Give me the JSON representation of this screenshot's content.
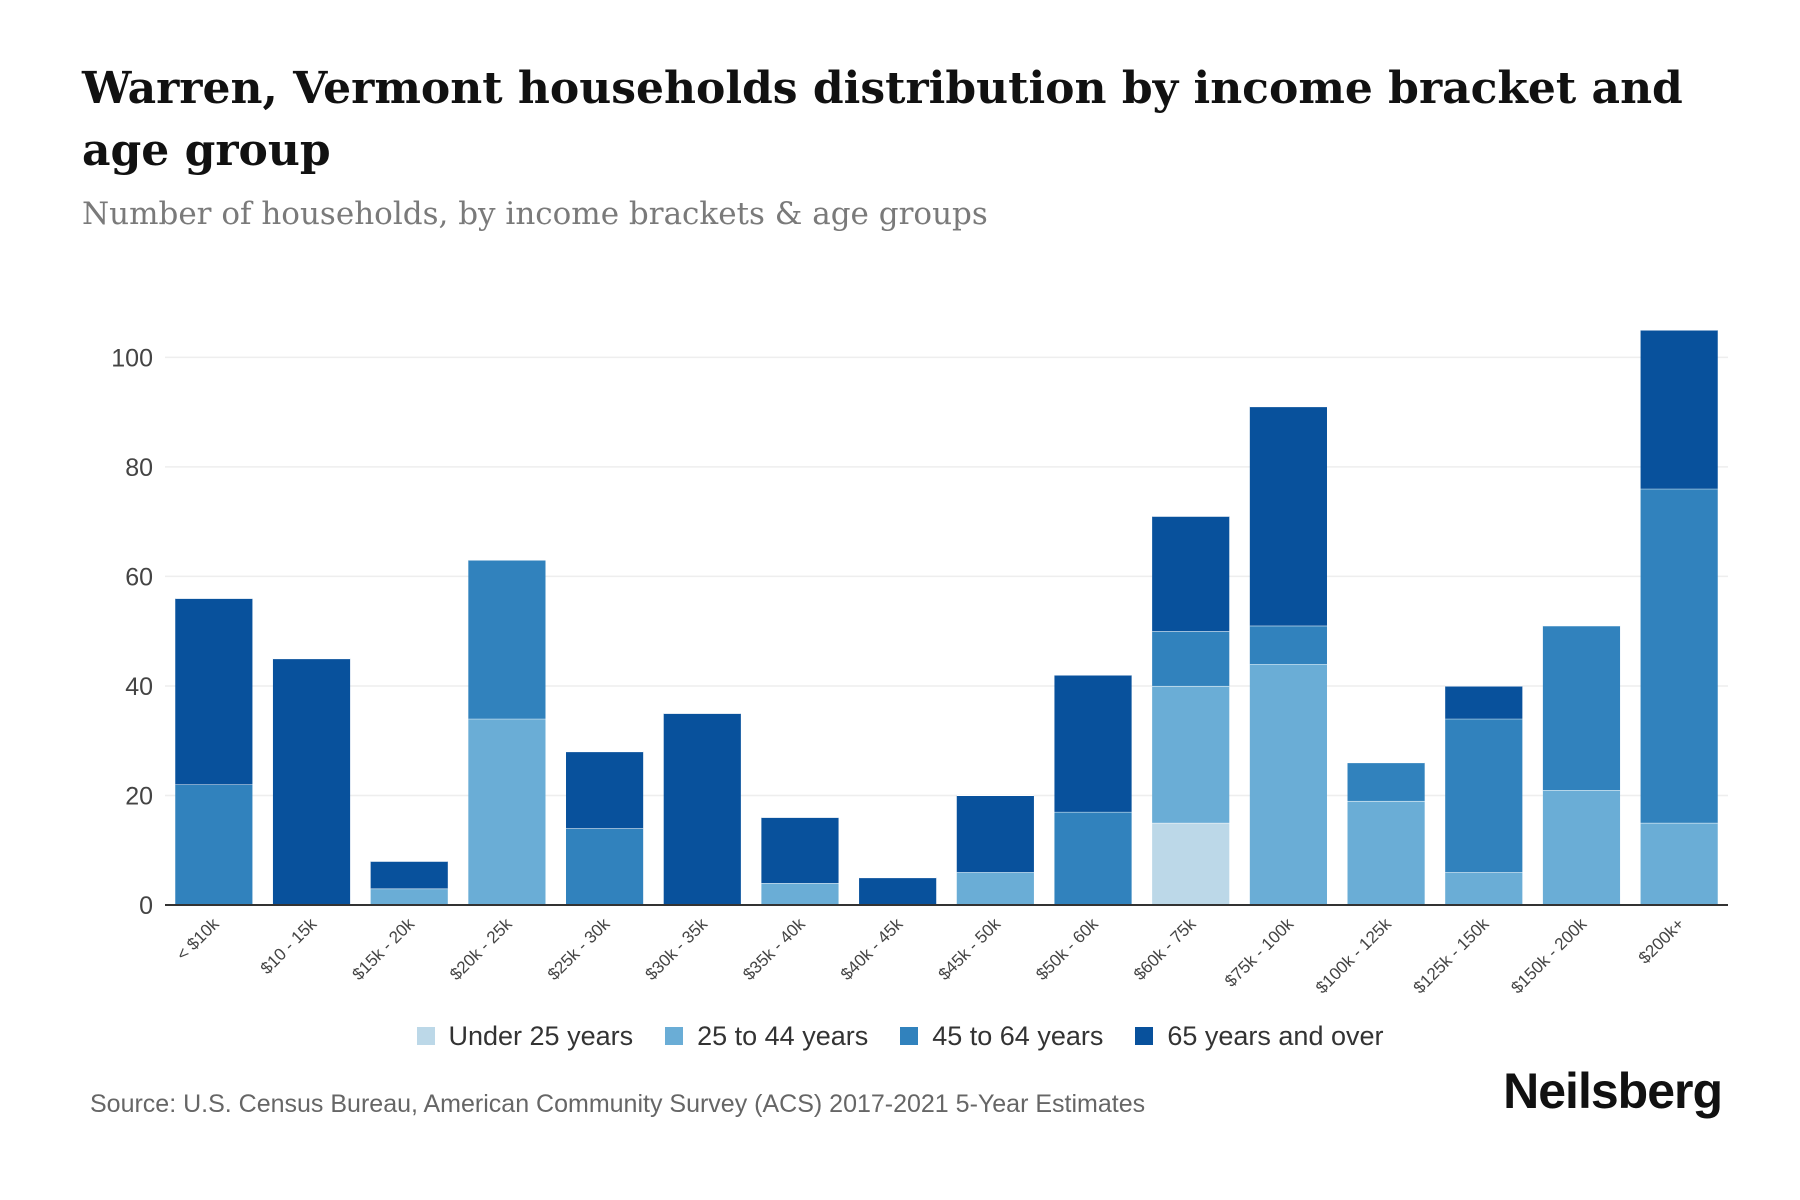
{
  "header": {
    "title": "Warren, Vermont households distribution by income bracket and age group",
    "subtitle": "Number of households, by income brackets & age groups"
  },
  "colors": {
    "under_25": "#bcd8e8",
    "age_25_44": "#6aadd6",
    "age_45_64": "#3182bd",
    "age_65_over": "#08519c",
    "grid": "#eeeeee",
    "axis": "#333333",
    "tick_text": "#444444"
  },
  "chart_data": {
    "type": "bar",
    "stacked": true,
    "categories": [
      "< $10k",
      "$10 - 15k",
      "$15k - 20k",
      "$20k - 25k",
      "$25k - 30k",
      "$30k - 35k",
      "$35k - 40k",
      "$40k - 45k",
      "$45k - 50k",
      "$50k - 60k",
      "$60k - 75k",
      "$75k - 100k",
      "$100k - 125k",
      "$125k - 150k",
      "$150k - 200k",
      "$200k+"
    ],
    "series": [
      {
        "name": "Under 25 years",
        "color_key": "under_25",
        "values": [
          0,
          0,
          0,
          0,
          0,
          0,
          0,
          0,
          0,
          0,
          15,
          0,
          0,
          0,
          0,
          0
        ]
      },
      {
        "name": "25 to 44 years",
        "color_key": "age_25_44",
        "values": [
          0,
          0,
          3,
          34,
          0,
          0,
          4,
          0,
          6,
          0,
          25,
          44,
          19,
          6,
          21,
          15
        ]
      },
      {
        "name": "45 to 64 years",
        "color_key": "age_45_64",
        "values": [
          22,
          0,
          0,
          29,
          14,
          0,
          0,
          0,
          0,
          17,
          10,
          7,
          7,
          28,
          30,
          61
        ]
      },
      {
        "name": "65 years and over",
        "color_key": "age_65_over",
        "values": [
          34,
          45,
          5,
          0,
          14,
          35,
          12,
          5,
          14,
          25,
          21,
          40,
          0,
          6,
          0,
          29
        ]
      }
    ],
    "ylim": [
      0,
      105
    ],
    "yticks": [
      0,
      20,
      40,
      60,
      80,
      100
    ],
    "grid": true,
    "legend_position": "bottom-center"
  },
  "footer": {
    "source": "Source: U.S. Census Bureau, American Community Survey (ACS) 2017-2021 5-Year Estimates",
    "brand": "Neilsberg"
  }
}
